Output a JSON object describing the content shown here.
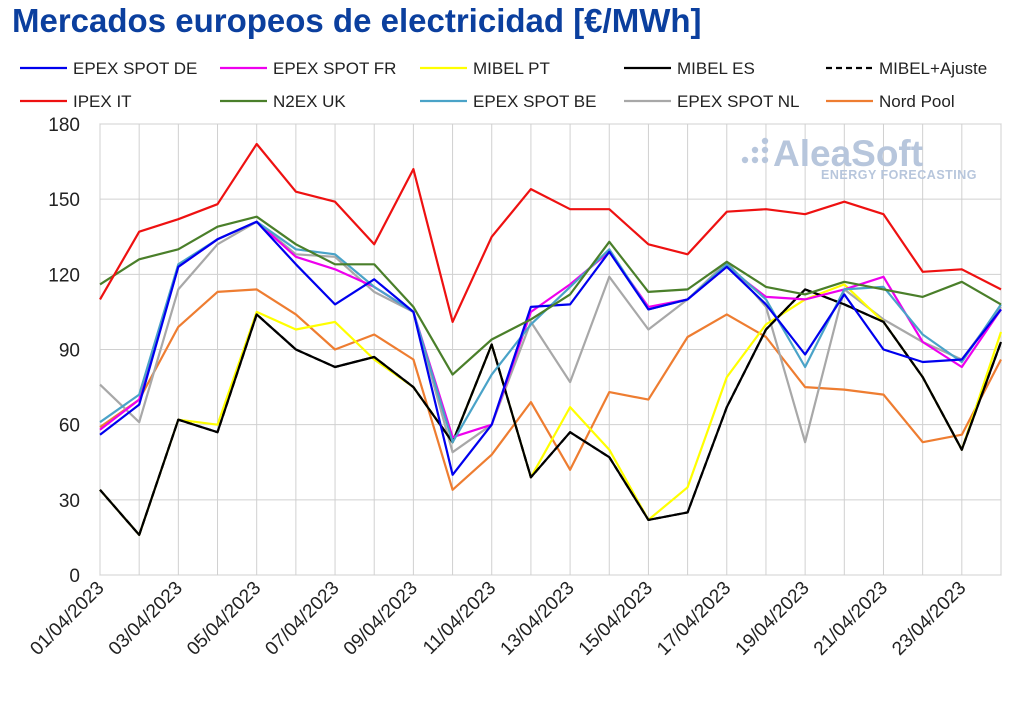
{
  "chart_data": {
    "type": "line",
    "title": "Mercados europeos de electricidad [€/MWh]",
    "xlabel": "",
    "ylabel": "",
    "ylim": [
      0,
      180
    ],
    "yticks": [
      0,
      30,
      60,
      90,
      120,
      150,
      180
    ],
    "grid": true,
    "legend_position": "top",
    "x": [
      "01/04/2023",
      "02/04/2023",
      "03/04/2023",
      "04/04/2023",
      "05/04/2023",
      "06/04/2023",
      "07/04/2023",
      "08/04/2023",
      "09/04/2023",
      "10/04/2023",
      "11/04/2023",
      "12/04/2023",
      "13/04/2023",
      "14/04/2023",
      "15/04/2023",
      "16/04/2023",
      "17/04/2023",
      "18/04/2023",
      "19/04/2023",
      "20/04/2023",
      "21/04/2023",
      "22/04/2023",
      "23/04/2023",
      "24/04/2023"
    ],
    "xtick_labels": [
      "01/04/2023",
      "03/04/2023",
      "05/04/2023",
      "07/04/2023",
      "09/04/2023",
      "11/04/2023",
      "13/04/2023",
      "15/04/2023",
      "17/04/2023",
      "19/04/2023",
      "21/04/2023",
      "23/04/2023"
    ],
    "series": [
      {
        "name": "EPEX SPOT DE",
        "color": "#0000ee",
        "dash": false,
        "values": [
          56,
          68,
          123,
          134,
          141,
          124,
          108,
          118,
          105,
          40,
          60,
          107,
          108,
          129,
          106,
          110,
          123,
          108,
          88,
          112,
          90,
          85,
          86,
          106
        ]
      },
      {
        "name": "EPEX SPOT FR",
        "color": "#ee00ee",
        "dash": false,
        "values": [
          58,
          70,
          123,
          134,
          141,
          127,
          122,
          115,
          105,
          55,
          60,
          105,
          116,
          129,
          107,
          110,
          123,
          111,
          110,
          114,
          119,
          93,
          83,
          106
        ]
      },
      {
        "name": "MIBEL PT",
        "color": "#ffff00",
        "dash": false,
        "values": [
          34,
          16,
          62,
          60,
          105,
          98,
          101,
          86,
          75,
          53,
          92,
          39,
          67,
          50,
          22,
          35,
          79,
          100,
          110,
          116,
          101,
          79,
          50,
          97
        ]
      },
      {
        "name": "MIBEL ES",
        "color": "#000000",
        "dash": false,
        "values": [
          34,
          16,
          62,
          57,
          104,
          90,
          83,
          87,
          75,
          53,
          92,
          39,
          57,
          47,
          22,
          25,
          67,
          98,
          114,
          108,
          101,
          79,
          50,
          93
        ]
      },
      {
        "name": "MIBEL+Ajuste",
        "color": "#000000",
        "dash": true,
        "values": [
          34,
          16,
          62,
          57,
          104,
          90,
          83,
          87,
          75,
          53,
          92,
          39,
          57,
          47,
          22,
          25,
          67,
          98,
          114,
          108,
          101,
          79,
          50,
          93
        ]
      },
      {
        "name": "IPEX IT",
        "color": "#ee1111",
        "dash": false,
        "values": [
          110,
          137,
          142,
          148,
          172,
          153,
          149,
          132,
          162,
          101,
          135,
          154,
          146,
          146,
          132,
          128,
          145,
          146,
          144,
          149,
          144,
          121,
          122,
          114
        ]
      },
      {
        "name": "N2EX UK",
        "color": "#4a7f2a",
        "dash": false,
        "values": [
          116,
          126,
          130,
          139,
          143,
          132,
          124,
          124,
          107,
          80,
          94,
          102,
          112,
          133,
          113,
          114,
          125,
          115,
          112,
          117,
          114,
          111,
          117,
          108
        ]
      },
      {
        "name": "EPEX SPOT BE",
        "color": "#4aa3c8",
        "dash": false,
        "values": [
          61,
          72,
          124,
          134,
          141,
          130,
          128,
          115,
          105,
          53,
          80,
          100,
          115,
          130,
          106,
          110,
          124,
          110,
          83,
          114,
          115,
          96,
          85,
          108
        ]
      },
      {
        "name": "EPEX SPOT NL",
        "color": "#a8a8a8",
        "dash": false,
        "values": [
          76,
          61,
          114,
          132,
          141,
          128,
          127,
          113,
          105,
          49,
          60,
          101,
          77,
          119,
          98,
          110,
          125,
          107,
          53,
          114,
          102,
          93,
          86,
          107
        ]
      },
      {
        "name": "Nord Pool",
        "color": "#ee7d31",
        "dash": false,
        "values": [
          59,
          70,
          99,
          113,
          114,
          104,
          90,
          96,
          86,
          34,
          48,
          69,
          42,
          73,
          70,
          95,
          104,
          95,
          75,
          74,
          72,
          53,
          56,
          86
        ]
      }
    ]
  },
  "logo": {
    "main": "AleaSoft",
    "sub": "ENERGY FORECASTING"
  }
}
